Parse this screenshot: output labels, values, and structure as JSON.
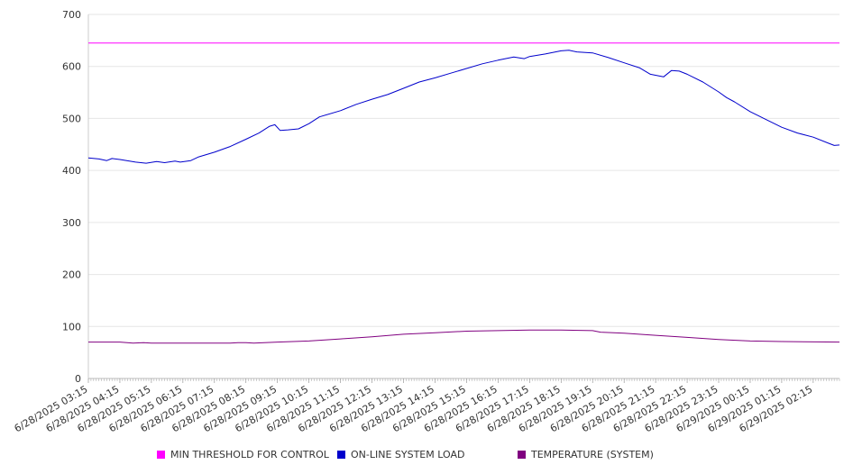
{
  "chart_data": {
    "type": "line",
    "title": "",
    "xlabel": "",
    "ylabel": "",
    "ylim": [
      0,
      700
    ],
    "yticks": [
      0,
      100,
      200,
      300,
      400,
      500,
      600,
      700
    ],
    "x_range": [
      "6/28/2025 03:15",
      "6/29/2025 03:05"
    ],
    "x_tick_labels": [
      "6/28/2025 03:15",
      "6/28/2025 04:15",
      "6/28/2025 05:15",
      "6/28/2025 06:15",
      "6/28/2025 07:15",
      "6/28/2025 08:15",
      "6/28/2025 09:15",
      "6/28/2025 10:15",
      "6/28/2025 11:15",
      "6/28/2025 12:15",
      "6/28/2025 13:15",
      "6/28/2025 14:15",
      "6/28/2025 15:15",
      "6/28/2025 16:15",
      "6/28/2025 17:15",
      "6/28/2025 18:15",
      "6/28/2025 19:15",
      "6/28/2025 20:15",
      "6/28/2025 21:15",
      "6/28/2025 22:15",
      "6/28/2025 23:15",
      "6/29/2025 00:15",
      "6/29/2025 01:15",
      "6/29/2025 02:15"
    ],
    "grid": true,
    "legend_position": "bottom",
    "series": [
      {
        "name": "MIN THRESHOLD FOR CONTROL",
        "color": "#ff00ff",
        "points": [
          [
            "6/28/2025 03:15",
            645
          ],
          [
            "6/29/2025 03:05",
            645
          ]
        ]
      },
      {
        "name": "ON-LINE SYSTEM LOAD",
        "color": "#0000cc",
        "points": [
          [
            "6/28/2025 03:15",
            424
          ],
          [
            "6/28/2025 03:35",
            422
          ],
          [
            "6/28/2025 03:50",
            419
          ],
          [
            "6/28/2025 04:00",
            423
          ],
          [
            "6/28/2025 04:15",
            421
          ],
          [
            "6/28/2025 04:45",
            416
          ],
          [
            "6/28/2025 05:05",
            414
          ],
          [
            "6/28/2025 05:25",
            417
          ],
          [
            "6/28/2025 05:40",
            415
          ],
          [
            "6/28/2025 06:00",
            418
          ],
          [
            "6/28/2025 06:10",
            416
          ],
          [
            "6/28/2025 06:30",
            419
          ],
          [
            "6/28/2025 06:45",
            426
          ],
          [
            "6/28/2025 07:15",
            435
          ],
          [
            "6/28/2025 07:45",
            446
          ],
          [
            "6/28/2025 08:15",
            460
          ],
          [
            "6/28/2025 08:40",
            472
          ],
          [
            "6/28/2025 09:00",
            485
          ],
          [
            "6/28/2025 09:10",
            488
          ],
          [
            "6/28/2025 09:20",
            477
          ],
          [
            "6/28/2025 09:35",
            478
          ],
          [
            "6/28/2025 09:55",
            480
          ],
          [
            "6/28/2025 10:15",
            490
          ],
          [
            "6/28/2025 10:35",
            503
          ],
          [
            "6/28/2025 11:15",
            515
          ],
          [
            "6/28/2025 11:45",
            527
          ],
          [
            "6/28/2025 12:15",
            537
          ],
          [
            "6/28/2025 12:45",
            546
          ],
          [
            "6/28/2025 13:15",
            558
          ],
          [
            "6/28/2025 13:45",
            570
          ],
          [
            "6/28/2025 14:15",
            578
          ],
          [
            "6/28/2025 14:45",
            587
          ],
          [
            "6/28/2025 15:15",
            596
          ],
          [
            "6/28/2025 15:45",
            605
          ],
          [
            "6/28/2025 16:15",
            612
          ],
          [
            "6/28/2025 16:45",
            618
          ],
          [
            "6/28/2025 17:05",
            615
          ],
          [
            "6/28/2025 17:15",
            619
          ],
          [
            "6/28/2025 17:45",
            624
          ],
          [
            "6/28/2025 18:15",
            630
          ],
          [
            "6/28/2025 18:30",
            631
          ],
          [
            "6/28/2025 18:45",
            628
          ],
          [
            "6/28/2025 19:15",
            626
          ],
          [
            "6/28/2025 19:45",
            617
          ],
          [
            "6/28/2025 20:15",
            607
          ],
          [
            "6/28/2025 20:45",
            597
          ],
          [
            "6/28/2025 21:05",
            585
          ],
          [
            "6/28/2025 21:30",
            580
          ],
          [
            "6/28/2025 21:45",
            592
          ],
          [
            "6/28/2025 22:00",
            591
          ],
          [
            "6/28/2025 22:15",
            585
          ],
          [
            "6/28/2025 22:45",
            570
          ],
          [
            "6/28/2025 23:15",
            551
          ],
          [
            "6/28/2025 23:30",
            540
          ],
          [
            "6/28/2025 23:45",
            532
          ],
          [
            "6/29/2025 00:15",
            513
          ],
          [
            "6/29/2025 00:45",
            498
          ],
          [
            "6/29/2025 01:15",
            483
          ],
          [
            "6/29/2025 01:45",
            472
          ],
          [
            "6/29/2025 02:15",
            464
          ],
          [
            "6/29/2025 02:45",
            452
          ],
          [
            "6/29/2025 02:55",
            448
          ],
          [
            "6/29/2025 03:05",
            449
          ]
        ]
      },
      {
        "name": "TEMPERATURE (SYSTEM)",
        "color": "#800080",
        "points": [
          [
            "6/28/2025 03:15",
            70
          ],
          [
            "6/28/2025 04:15",
            70
          ],
          [
            "6/28/2025 04:40",
            68
          ],
          [
            "6/28/2025 05:00",
            69
          ],
          [
            "6/28/2025 05:15",
            68
          ],
          [
            "6/28/2025 07:15",
            68
          ],
          [
            "6/28/2025 07:45",
            68
          ],
          [
            "6/28/2025 08:00",
            69
          ],
          [
            "6/28/2025 08:15",
            69
          ],
          [
            "6/28/2025 08:30",
            68
          ],
          [
            "6/28/2025 09:15",
            70
          ],
          [
            "6/28/2025 10:15",
            72
          ],
          [
            "6/28/2025 11:15",
            76
          ],
          [
            "6/28/2025 12:15",
            80
          ],
          [
            "6/28/2025 13:15",
            85
          ],
          [
            "6/28/2025 14:15",
            88
          ],
          [
            "6/28/2025 15:15",
            91
          ],
          [
            "6/28/2025 16:15",
            92
          ],
          [
            "6/28/2025 17:15",
            93
          ],
          [
            "6/28/2025 18:15",
            93
          ],
          [
            "6/28/2025 19:15",
            92
          ],
          [
            "6/28/2025 19:30",
            89
          ],
          [
            "6/28/2025 20:15",
            87
          ],
          [
            "6/28/2025 21:15",
            83
          ],
          [
            "6/28/2025 22:15",
            79
          ],
          [
            "6/28/2025 23:15",
            75
          ],
          [
            "6/29/2025 00:15",
            72
          ],
          [
            "6/29/2025 01:15",
            71
          ],
          [
            "6/29/2025 03:05",
            70
          ]
        ]
      }
    ]
  }
}
